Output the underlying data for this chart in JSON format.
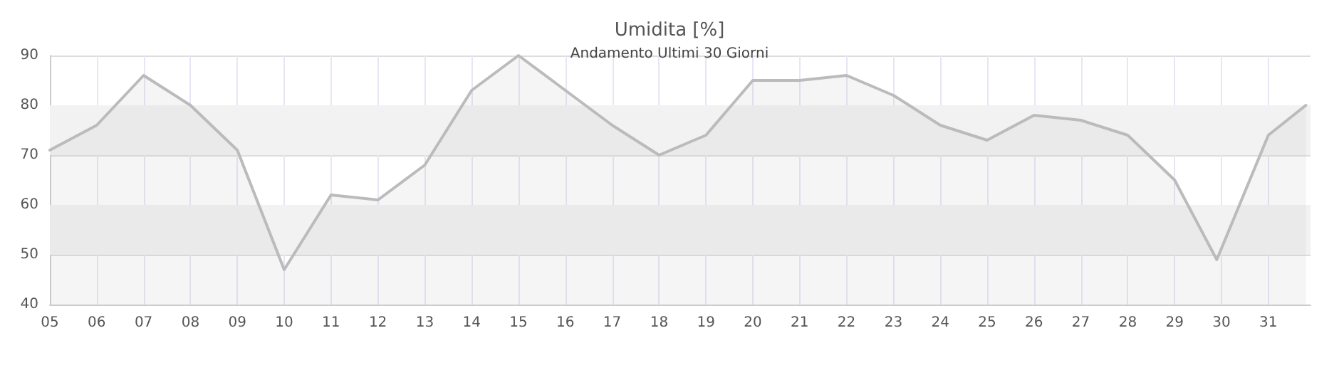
{
  "chart_data": {
    "type": "area",
    "title": "Umidita [%]",
    "subtitle": "Andamento Ultimi 30 Giorni",
    "x": [
      5,
      6,
      7,
      8,
      9,
      10,
      11,
      12,
      13,
      14,
      15,
      16,
      17,
      18,
      19,
      20,
      21,
      22,
      23,
      24,
      25,
      26,
      27,
      28,
      29,
      29.9,
      31,
      31.8
    ],
    "series": [
      {
        "color": "#bbbbbb",
        "values": [
          71,
          76,
          86,
          80,
          71,
          47,
          62,
          61,
          68,
          83,
          90,
          83,
          76,
          70,
          74,
          85,
          85,
          86,
          82,
          76,
          73,
          78,
          77,
          74,
          65,
          49,
          74,
          80
        ]
      }
    ],
    "xlim": [
      5,
      31.9
    ],
    "xticks": [
      {
        "value": 5,
        "label": "05"
      },
      {
        "value": 6,
        "label": "06"
      },
      {
        "value": 7,
        "label": "07"
      },
      {
        "value": 8,
        "label": "08"
      },
      {
        "value": 9,
        "label": "09"
      },
      10,
      11,
      12,
      13,
      14,
      15,
      16,
      17,
      18,
      19,
      20,
      21,
      22,
      23,
      24,
      25,
      26,
      27,
      28,
      29,
      30,
      31
    ],
    "ylim": [
      40,
      90
    ],
    "yticks": [
      40,
      50,
      60,
      70,
      80,
      90
    ],
    "bands": [
      {
        "axis": "y",
        "from": 50,
        "to": 60,
        "color": "#f2f2f2"
      },
      {
        "axis": "y",
        "from": 70,
        "to": 80,
        "color": "#f2f2f2"
      }
    ],
    "grid": true,
    "marker": "none",
    "line_style": "solid"
  }
}
